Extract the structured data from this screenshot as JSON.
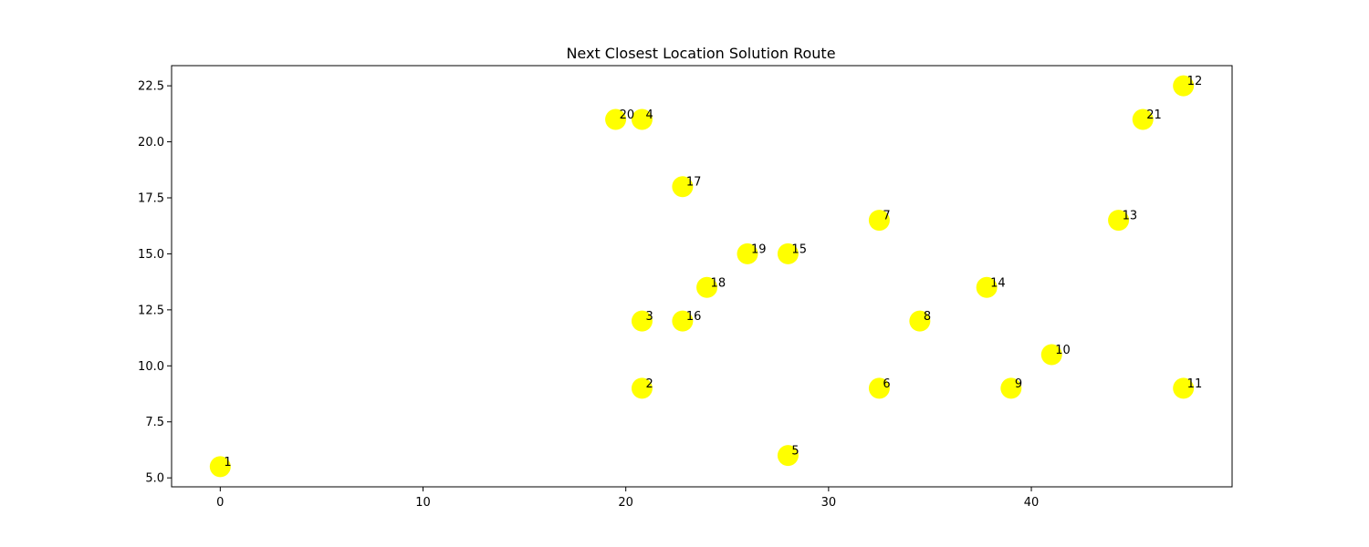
{
  "chart_data": {
    "type": "scatter",
    "title": "Next Closest Location Solution Route",
    "xlabel": "",
    "ylabel": "",
    "xlim": [
      -2.4,
      49.9
    ],
    "ylim": [
      4.6,
      23.4
    ],
    "x_ticks": [
      0,
      10,
      20,
      30,
      40
    ],
    "y_ticks": [
      5.0,
      7.5,
      10.0,
      12.5,
      15.0,
      17.5,
      20.0,
      22.5
    ],
    "x_tick_labels": [
      "0",
      "10",
      "20",
      "30",
      "40"
    ],
    "y_tick_labels": [
      "5.0",
      "7.5",
      "10.0",
      "12.5",
      "15.0",
      "17.5",
      "20.0",
      "22.5"
    ],
    "grid": false,
    "marker_color": "#ffff00",
    "points": [
      {
        "label": "1",
        "x": 0,
        "y": 5.5
      },
      {
        "label": "2",
        "x": 20.8,
        "y": 9.0
      },
      {
        "label": "3",
        "x": 20.8,
        "y": 12.0
      },
      {
        "label": "4",
        "x": 20.8,
        "y": 21.0
      },
      {
        "label": "5",
        "x": 28.0,
        "y": 6.0
      },
      {
        "label": "6",
        "x": 32.5,
        "y": 9.0
      },
      {
        "label": "7",
        "x": 32.5,
        "y": 16.5
      },
      {
        "label": "8",
        "x": 34.5,
        "y": 12.0
      },
      {
        "label": "9",
        "x": 39.0,
        "y": 9.0
      },
      {
        "label": "10",
        "x": 41.0,
        "y": 10.5
      },
      {
        "label": "11",
        "x": 47.5,
        "y": 9.0
      },
      {
        "label": "12",
        "x": 47.5,
        "y": 22.5
      },
      {
        "label": "13",
        "x": 44.3,
        "y": 16.5
      },
      {
        "label": "14",
        "x": 37.8,
        "y": 13.5
      },
      {
        "label": "15",
        "x": 28.0,
        "y": 15.0
      },
      {
        "label": "16",
        "x": 22.8,
        "y": 12.0
      },
      {
        "label": "17",
        "x": 22.8,
        "y": 18.0
      },
      {
        "label": "18",
        "x": 24.0,
        "y": 13.5
      },
      {
        "label": "19",
        "x": 26.0,
        "y": 15.0
      },
      {
        "label": "20",
        "x": 19.5,
        "y": 21.0
      },
      {
        "label": "21",
        "x": 45.5,
        "y": 21.0
      }
    ]
  }
}
